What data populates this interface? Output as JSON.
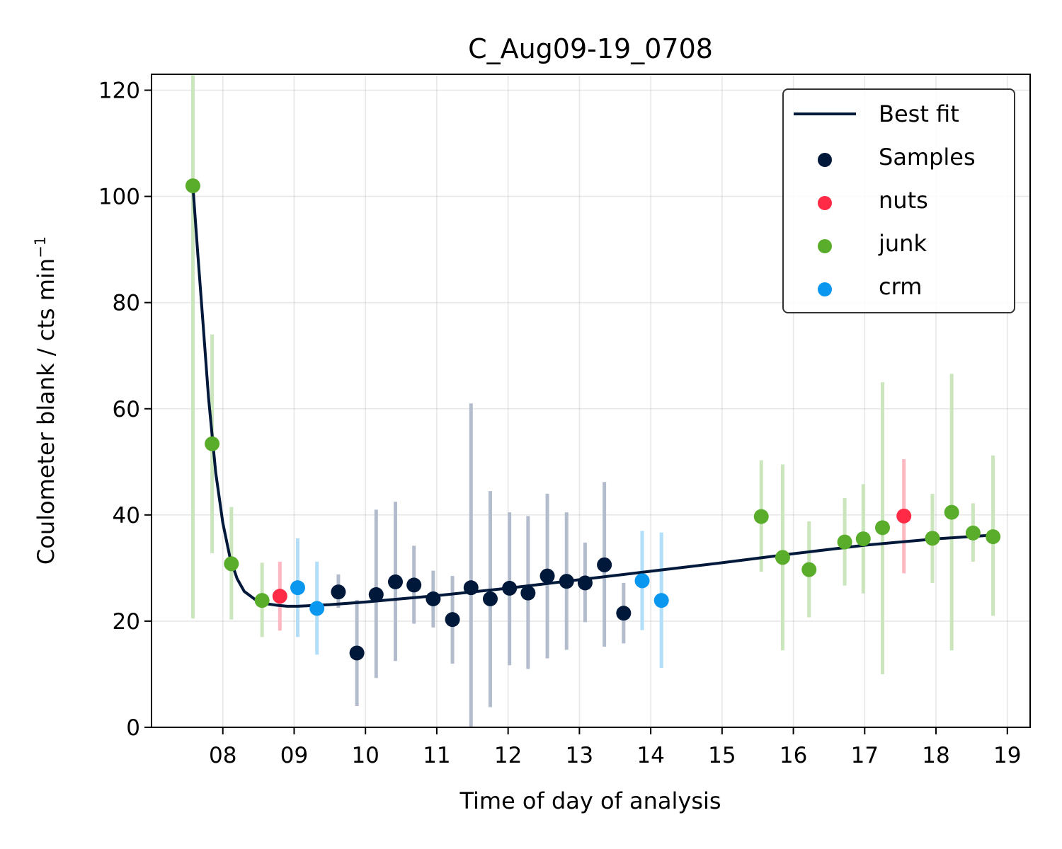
{
  "chart_data": {
    "type": "scatter",
    "title": "C_Aug09-19_0708",
    "xlabel": "Time of day of analysis",
    "ylabel": "Coulometer blank / cts min",
    "ylabel_superscript": "−1",
    "xlim": [
      7.0,
      19.32
    ],
    "ylim": [
      0,
      123
    ],
    "xticks": [
      8,
      9,
      10,
      11,
      12,
      13,
      14,
      15,
      16,
      17,
      18,
      19
    ],
    "xtick_labels": [
      "08",
      "09",
      "10",
      "11",
      "12",
      "13",
      "14",
      "15",
      "16",
      "17",
      "18",
      "19"
    ],
    "yticks": [
      0,
      20,
      40,
      60,
      80,
      100,
      120
    ],
    "ytick_labels": [
      "0",
      "20",
      "40",
      "60",
      "80",
      "100",
      "120"
    ],
    "grid": true,
    "legend_position": "top-right",
    "best_fit": {
      "name": "Best fit",
      "color": "#00183a",
      "x": [
        7.58,
        7.65,
        7.72,
        7.8,
        7.9,
        8.0,
        8.1,
        8.2,
        8.3,
        8.45,
        8.6,
        8.75,
        8.9,
        9.05,
        9.2,
        9.5,
        10.0,
        11.0,
        12.0,
        13.0,
        14.0,
        15.0,
        16.0,
        17.0,
        18.0,
        18.8
      ],
      "y": [
        102.0,
        89.0,
        76.5,
        62.0,
        48.0,
        38.5,
        32.0,
        28.0,
        25.6,
        24.1,
        23.3,
        23.0,
        22.8,
        22.8,
        22.9,
        23.1,
        23.6,
        24.8,
        26.2,
        27.8,
        29.4,
        31.0,
        32.7,
        34.3,
        35.5,
        36.2
      ]
    },
    "series": [
      {
        "name": "Samples",
        "color": "#00183a",
        "errorbar_color": "#b3bccc",
        "points": [
          {
            "x": 9.62,
            "y": 25.5,
            "lo": 22.5,
            "hi": 28.8
          },
          {
            "x": 9.88,
            "y": 14.0,
            "lo": 4.0,
            "hi": 24.0
          },
          {
            "x": 10.15,
            "y": 25.0,
            "lo": 9.3,
            "hi": 41.0
          },
          {
            "x": 10.42,
            "y": 27.4,
            "lo": 12.5,
            "hi": 42.5
          },
          {
            "x": 10.68,
            "y": 26.8,
            "lo": 19.5,
            "hi": 34.2
          },
          {
            "x": 10.95,
            "y": 24.2,
            "lo": 18.8,
            "hi": 29.5
          },
          {
            "x": 11.22,
            "y": 20.3,
            "lo": 12.0,
            "hi": 28.5
          },
          {
            "x": 11.48,
            "y": 26.3,
            "lo": 0.0,
            "hi": 61.0
          },
          {
            "x": 11.75,
            "y": 24.2,
            "lo": 3.8,
            "hi": 44.5
          },
          {
            "x": 12.02,
            "y": 26.2,
            "lo": 11.7,
            "hi": 40.5
          },
          {
            "x": 12.28,
            "y": 25.3,
            "lo": 11.0,
            "hi": 39.8
          },
          {
            "x": 12.55,
            "y": 28.5,
            "lo": 13.0,
            "hi": 44.0
          },
          {
            "x": 12.82,
            "y": 27.5,
            "lo": 14.6,
            "hi": 40.5
          },
          {
            "x": 13.08,
            "y": 27.2,
            "lo": 19.8,
            "hi": 34.8
          },
          {
            "x": 13.35,
            "y": 30.6,
            "lo": 15.2,
            "hi": 46.2
          },
          {
            "x": 13.62,
            "y": 21.5,
            "lo": 15.8,
            "hi": 27.2
          }
        ]
      },
      {
        "name": "nuts",
        "color": "#ff2a45",
        "errorbar_color": "#ffb7c1",
        "points": [
          {
            "x": 8.8,
            "y": 24.7,
            "lo": 18.2,
            "hi": 31.2
          },
          {
            "x": 17.55,
            "y": 39.8,
            "lo": 29.0,
            "hi": 50.5
          }
        ]
      },
      {
        "name": "junk",
        "color": "#5aad2b",
        "errorbar_color": "#cbe5bd",
        "points": [
          {
            "x": 7.58,
            "y": 102.0,
            "lo": 20.5,
            "hi": 123.0
          },
          {
            "x": 7.85,
            "y": 53.4,
            "lo": 32.8,
            "hi": 74.0
          },
          {
            "x": 8.12,
            "y": 30.8,
            "lo": 20.3,
            "hi": 41.5
          },
          {
            "x": 8.55,
            "y": 23.9,
            "lo": 17.0,
            "hi": 31.0
          },
          {
            "x": 15.55,
            "y": 39.7,
            "lo": 29.3,
            "hi": 50.3
          },
          {
            "x": 15.85,
            "y": 32.0,
            "lo": 14.5,
            "hi": 49.5
          },
          {
            "x": 16.22,
            "y": 29.7,
            "lo": 20.7,
            "hi": 38.8
          },
          {
            "x": 16.72,
            "y": 34.9,
            "lo": 26.7,
            "hi": 43.2
          },
          {
            "x": 16.98,
            "y": 35.5,
            "lo": 25.2,
            "hi": 45.8
          },
          {
            "x": 17.25,
            "y": 37.6,
            "lo": 10.0,
            "hi": 65.0
          },
          {
            "x": 17.95,
            "y": 35.6,
            "lo": 27.2,
            "hi": 44.0
          },
          {
            "x": 18.22,
            "y": 40.5,
            "lo": 14.5,
            "hi": 66.6
          },
          {
            "x": 18.52,
            "y": 36.6,
            "lo": 31.2,
            "hi": 42.2
          },
          {
            "x": 18.8,
            "y": 35.9,
            "lo": 21.0,
            "hi": 51.2
          }
        ]
      },
      {
        "name": "crm",
        "color": "#0a97f0",
        "errorbar_color": "#b2def9",
        "points": [
          {
            "x": 9.05,
            "y": 26.3,
            "lo": 17.0,
            "hi": 35.6
          },
          {
            "x": 9.32,
            "y": 22.4,
            "lo": 13.7,
            "hi": 31.2
          },
          {
            "x": 13.88,
            "y": 27.6,
            "lo": 18.3,
            "hi": 37.0
          },
          {
            "x": 14.15,
            "y": 23.9,
            "lo": 11.2,
            "hi": 36.7
          }
        ]
      }
    ]
  }
}
